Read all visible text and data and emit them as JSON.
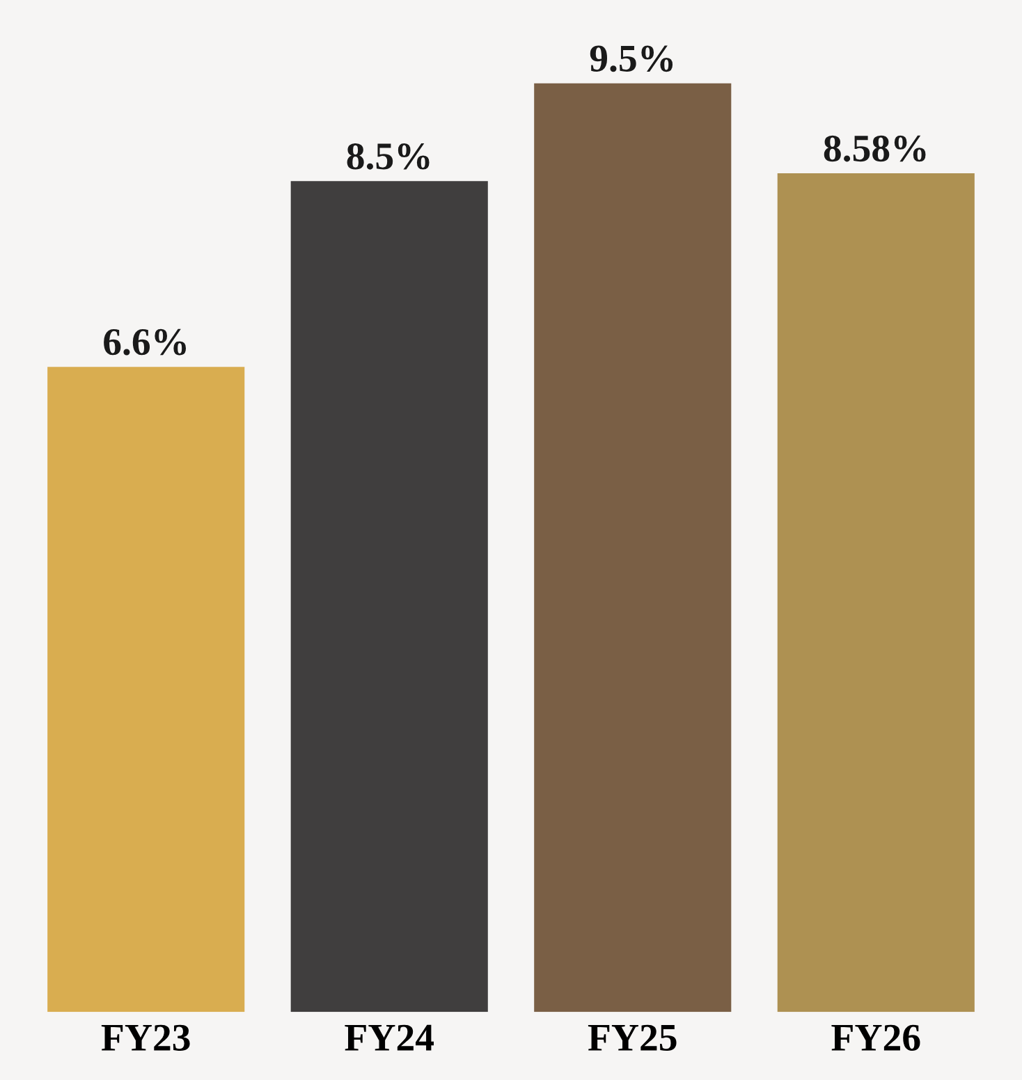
{
  "chart_data": {
    "type": "bar",
    "categories": [
      "FY23",
      "FY24",
      "FY25",
      "FY26"
    ],
    "values": [
      6.6,
      8.5,
      9.5,
      8.58
    ],
    "colors": [
      "#d9ad50",
      "#403e3e",
      "#7a5f45",
      "#ae9152"
    ],
    "value_labels": [
      "6.6%",
      "8.5%",
      "9.5%",
      "8.58%"
    ],
    "grid": false,
    "legend": false
  }
}
